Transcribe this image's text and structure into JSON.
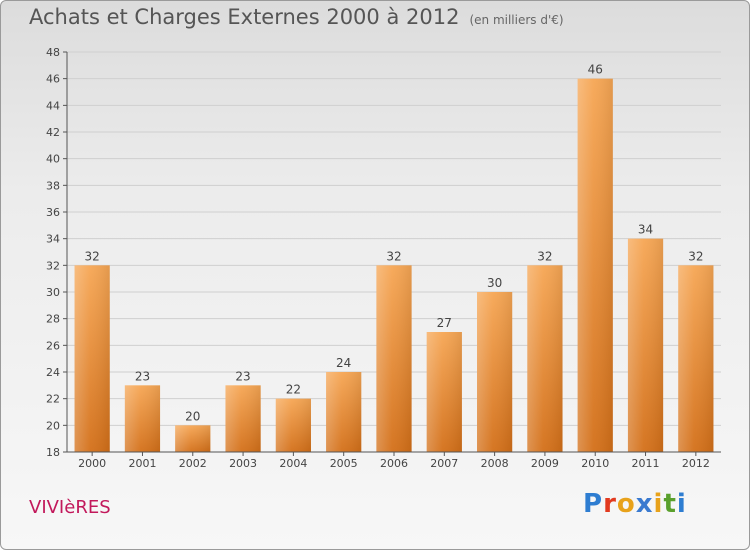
{
  "header": {
    "title": "Achats et Charges Externes 2000 à 2012",
    "unit": "(en milliers d'€)"
  },
  "footer": {
    "town": "VIVIèRES",
    "brand_letters": [
      "P",
      "r",
      "o",
      "x",
      "i",
      "t",
      "i"
    ],
    "brand_colors": [
      "#2e7dd1",
      "#e23a1f",
      "#e8a21b",
      "#3a7ad0",
      "#e8a21b",
      "#5aa02c",
      "#2e7dd1"
    ]
  },
  "chart_data": {
    "type": "bar",
    "categories": [
      "2000",
      "2001",
      "2002",
      "2003",
      "2004",
      "2005",
      "2006",
      "2007",
      "2008",
      "2009",
      "2010",
      "2011",
      "2012"
    ],
    "values": [
      32,
      23,
      20,
      23,
      22,
      24,
      32,
      27,
      30,
      32,
      46,
      34,
      32
    ],
    "ylim": [
      18,
      48
    ],
    "yticks": [
      18,
      20,
      22,
      24,
      26,
      28,
      30,
      32,
      34,
      36,
      38,
      40,
      42,
      44,
      46,
      48
    ],
    "grid": true,
    "bar_color_top": "#f6a654",
    "bar_color_bottom": "#d36f18"
  }
}
